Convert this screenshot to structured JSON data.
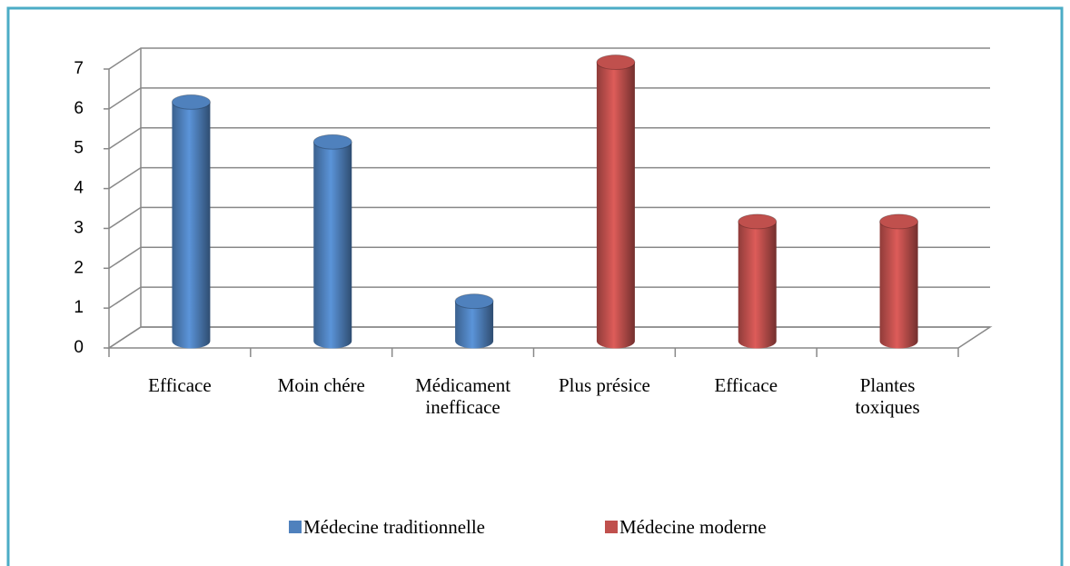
{
  "chart_data": {
    "type": "bar3d",
    "categories": [
      "Efficace",
      "Moin chére",
      "Médicament inefficace",
      "Plus présice",
      "Efficace",
      "Plantes toxiques"
    ],
    "series": [
      {
        "name": "Médecine traditionnelle",
        "color": "#4f81bd",
        "values": [
          6,
          5,
          1,
          null,
          null,
          null
        ]
      },
      {
        "name": "Médecine moderne",
        "color": "#c0504d",
        "values": [
          null,
          null,
          null,
          7,
          3,
          3
        ]
      }
    ],
    "ylim": [
      0,
      7
    ],
    "yticks": [
      0,
      1,
      2,
      3,
      4,
      5,
      6,
      7
    ],
    "grid": true,
    "legend": "bottom"
  }
}
